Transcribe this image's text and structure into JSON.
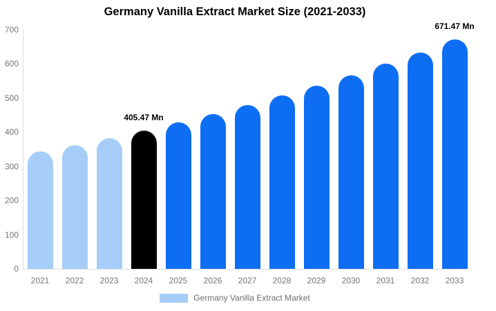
{
  "title": "Germany Vanilla Extract Market Size (2021-2033)",
  "chart_data": {
    "type": "bar",
    "title": "Germany Vanilla Extract Market Size (2021-2033)",
    "categories": [
      "2021",
      "2022",
      "2023",
      "2024",
      "2025",
      "2026",
      "2027",
      "2028",
      "2029",
      "2030",
      "2031",
      "2032",
      "2033"
    ],
    "values": [
      343,
      363,
      383,
      405.47,
      429,
      453,
      480,
      507,
      536,
      567,
      600,
      634,
      671.47
    ],
    "bar_colors": [
      "#a5cdf8",
      "#a5cdf8",
      "#a5cdf8",
      "#000000",
      "#0d6ef4",
      "#0d6ef4",
      "#0d6ef4",
      "#0d6ef4",
      "#0d6ef4",
      "#0d6ef4",
      "#0d6ef4",
      "#0d6ef4",
      "#0d6ef4"
    ],
    "yticks": [
      0,
      100,
      200,
      300,
      400,
      500,
      600,
      700
    ],
    "ylim": [
      0,
      700
    ],
    "xlabel": "",
    "ylabel": "",
    "grid": false,
    "legend_position": "bottom",
    "annotations": [
      {
        "index": 3,
        "text": "405.47 Mn"
      },
      {
        "index": 12,
        "text": "671.47 Mn"
      }
    ],
    "legend_swatch_color": "#a5cdf8",
    "axis_color": "#dcdcdc",
    "tick_text_color": "#757575"
  },
  "legend": {
    "label": "Germany Vanilla Extract Market"
  }
}
